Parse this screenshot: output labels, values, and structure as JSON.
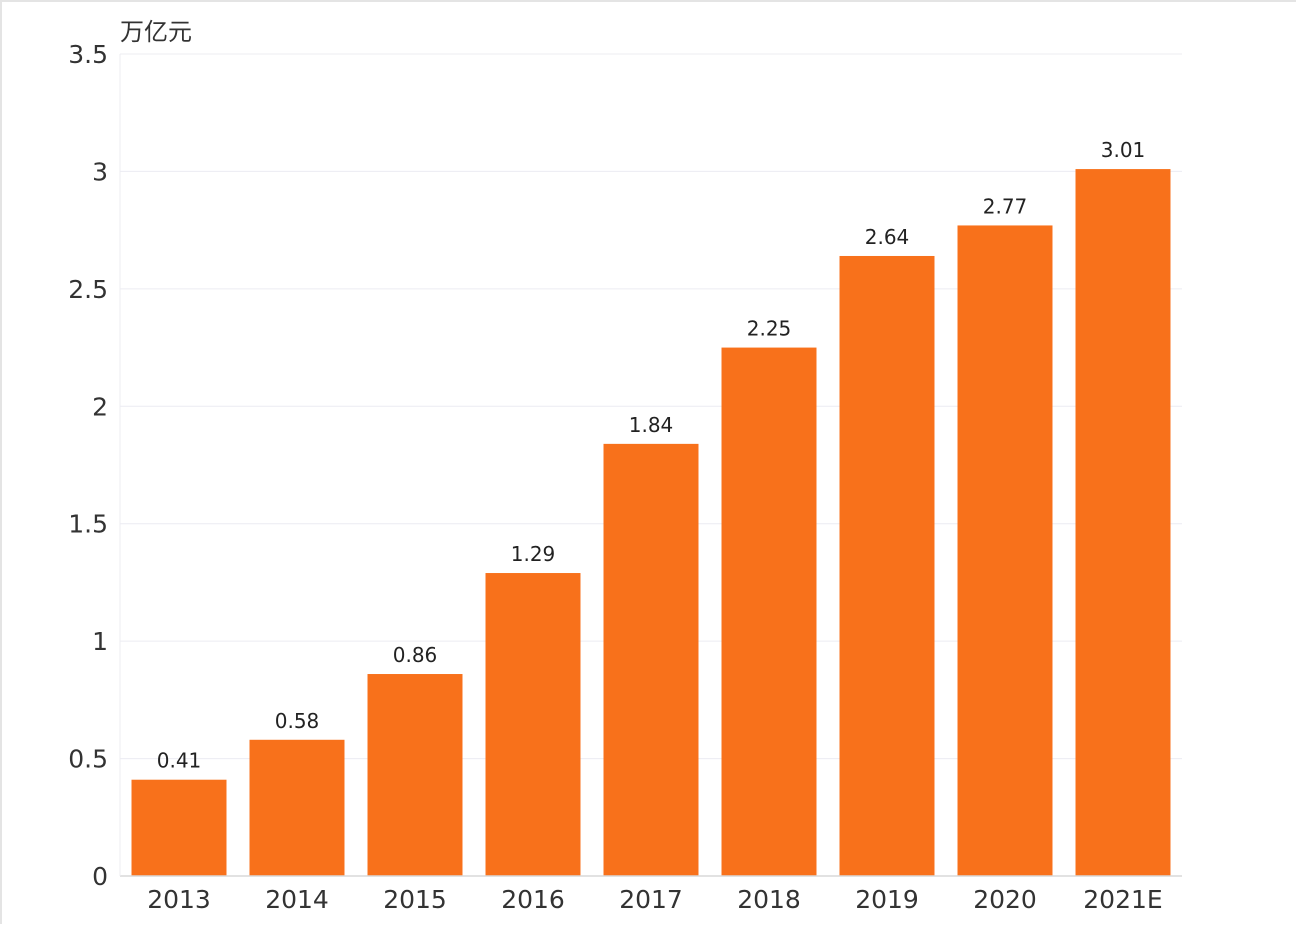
{
  "chart_data": {
    "type": "bar",
    "title": "",
    "unit_label": "万亿元",
    "xlabel": "",
    "ylabel": "万亿元",
    "categories": [
      "2013",
      "2014",
      "2015",
      "2016",
      "2017",
      "2018",
      "2019",
      "2020",
      "2021E"
    ],
    "values": [
      0.41,
      0.58,
      0.86,
      1.29,
      1.84,
      2.25,
      2.64,
      2.77,
      3.01
    ],
    "value_labels": [
      "0.41",
      "0.58",
      "0.86",
      "1.29",
      "1.84",
      "2.25",
      "2.64",
      "2.77",
      "3.01"
    ],
    "ylim": [
      0,
      3.5
    ],
    "yticks": [
      0,
      0.5,
      1,
      1.5,
      2,
      2.5,
      3,
      3.5
    ],
    "ytick_labels": [
      "0",
      "0.5",
      "1",
      "1.5",
      "2",
      "2.5",
      "3",
      "3.5"
    ],
    "grid": true,
    "legend": "none",
    "colors": {
      "bar": "#f8711b",
      "grid": "#ececf2",
      "axis": "#d8d8d8",
      "text": "#333333"
    }
  }
}
